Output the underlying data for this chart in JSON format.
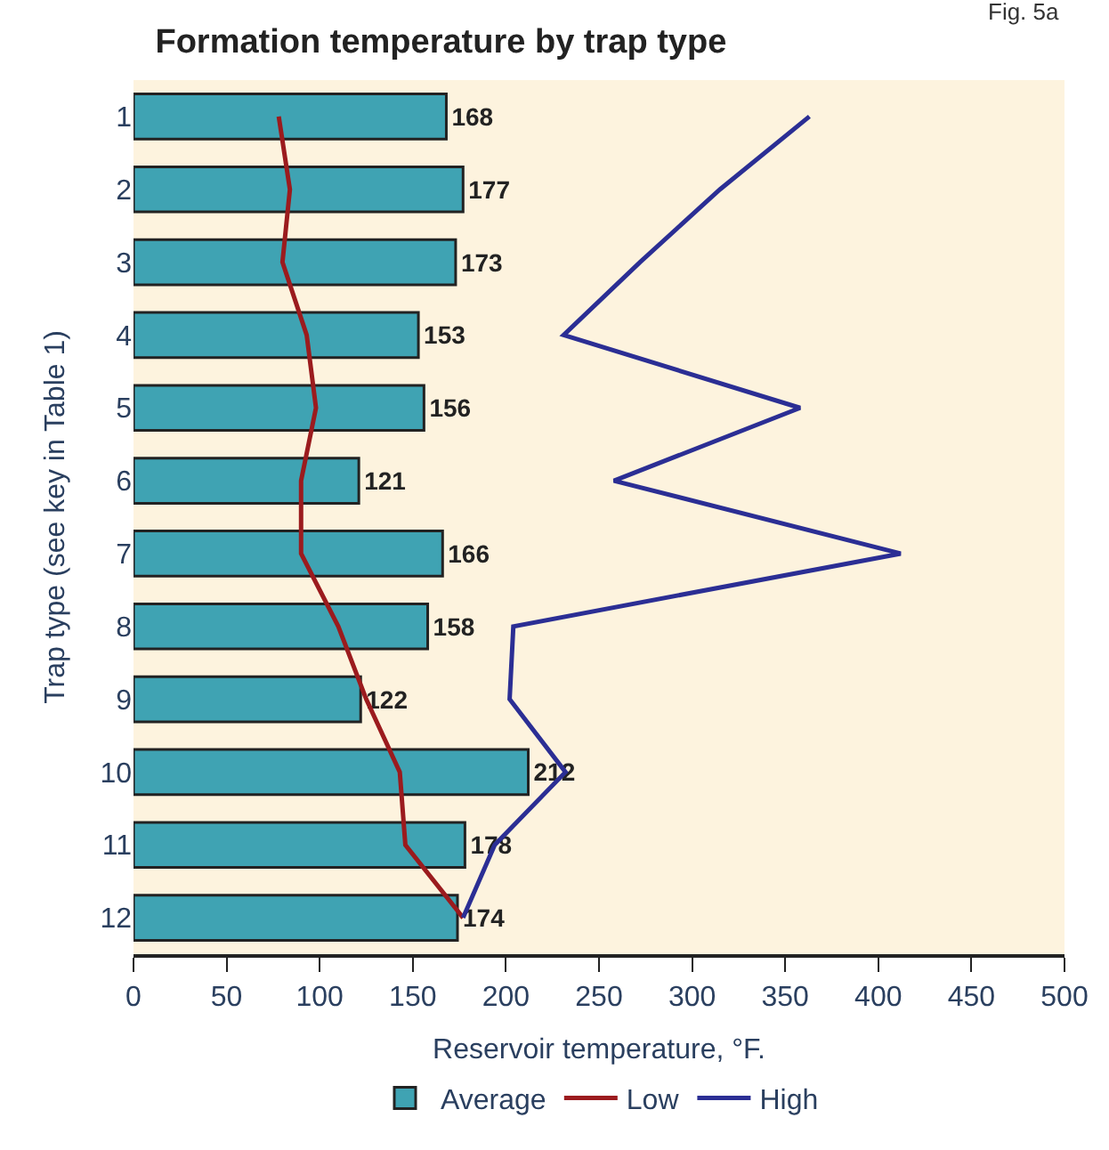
{
  "chart_data": {
    "type": "bar",
    "orientation": "horizontal",
    "title": "Formation temperature by trap type",
    "annotations": [
      "Fig. 5a"
    ],
    "xlabel": "Reservoir temperature, °F.",
    "ylabel": "Trap type (see key in Table 1)",
    "categories": [
      "1",
      "2",
      "3",
      "4",
      "5",
      "6",
      "7",
      "8",
      "9",
      "10",
      "11",
      "12"
    ],
    "series": [
      {
        "name": "Average",
        "color": "#3fa3b3",
        "values": [
          168,
          177,
          173,
          153,
          156,
          121,
          166,
          158,
          122,
          212,
          178,
          174
        ],
        "value_labels": [
          "168",
          "177",
          "173",
          "153",
          "156",
          "121",
          "166",
          "158",
          "122",
          "212",
          "178",
          "174"
        ]
      },
      {
        "name": "Low",
        "type": "line",
        "color": "#9b1b1e",
        "values": [
          78,
          84,
          80,
          93,
          98,
          90,
          90,
          110,
          125,
          143,
          146,
          177
        ]
      },
      {
        "name": "High",
        "type": "line",
        "color": "#2b2e94",
        "values": [
          363,
          315,
          272,
          231,
          358,
          258,
          412,
          204,
          202,
          232,
          194,
          177
        ]
      }
    ],
    "xlim": [
      0,
      500
    ],
    "xticks": [
      0,
      50,
      100,
      150,
      200,
      250,
      300,
      350,
      400,
      450,
      500
    ],
    "grid": false,
    "legend": "bottom",
    "marker": "none",
    "line_style": "solid"
  }
}
